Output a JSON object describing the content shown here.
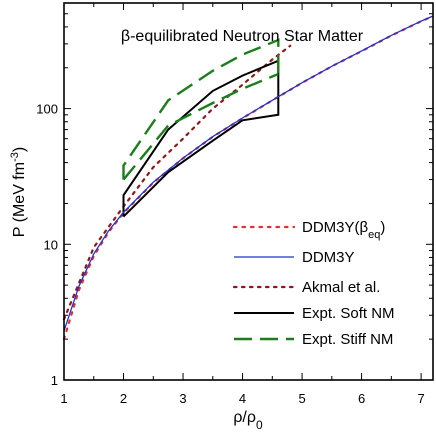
{
  "chart_data": {
    "type": "line",
    "title": "β-equilibrated Neutron Star Matter",
    "xlabel_base": "ρ/ρ",
    "xlabel_sub": "0",
    "ylabel_pre": "P (MeV fm",
    "ylabel_sup": "-3",
    "ylabel_post": ")",
    "xlim": [
      1,
      7.2
    ],
    "ylim": [
      1,
      600
    ],
    "y_scale": "log",
    "x_ticks": [
      1,
      2,
      3,
      4,
      5,
      6,
      7
    ],
    "y_ticks": [
      1,
      10,
      100
    ],
    "legend_position": "bottom-right",
    "series": [
      {
        "name_base": "DDM3Y(β",
        "name_sub": "eq",
        "name_post": ")",
        "color": "#e03030",
        "style": "dotted-red",
        "x": [
          1.0,
          1.25,
          1.5,
          1.75,
          2.0,
          2.5,
          3.0,
          3.5,
          4.0,
          4.5,
          5.0,
          5.5,
          6.0,
          6.5,
          7.0,
          7.2
        ],
        "y": [
          2.0,
          4.6,
          8.2,
          12.3,
          17.0,
          28.5,
          43.0,
          62.0,
          85.0,
          115.0,
          155.0,
          205.0,
          265.0,
          345.0,
          440.0,
          480.0
        ]
      },
      {
        "name": "DDM3Y",
        "color": "#2233cc",
        "style": "solid-blue",
        "x": [
          1.0,
          1.25,
          1.5,
          1.75,
          2.0,
          2.5,
          3.0,
          3.5,
          4.0,
          4.5,
          5.0,
          5.5,
          6.0,
          6.5,
          7.0,
          7.2
        ],
        "y": [
          2.3,
          4.9,
          8.5,
          12.6,
          17.2,
          28.7,
          43.2,
          62.2,
          85.2,
          115.2,
          155.2,
          205.0,
          266.0,
          346.0,
          441.0,
          481.0
        ]
      },
      {
        "name": "Akmal et al.",
        "color": "#8b1a1a",
        "style": "dotted-darkred",
        "x": [
          1.0,
          1.5,
          2.0,
          2.5,
          3.0,
          3.5,
          4.0,
          4.5,
          4.8
        ],
        "y": [
          2.8,
          9.5,
          19.0,
          37.0,
          60.0,
          100.0,
          150.0,
          230.0,
          290.0
        ]
      },
      {
        "name": "Expt. Soft NM",
        "color": "#000000",
        "style": "solid-black",
        "upper": {
          "x": [
            2.0,
            2.0,
            2.75,
            3.5,
            4.0,
            4.6,
            4.6
          ],
          "y": [
            16.0,
            23.0,
            70.0,
            135.0,
            175.0,
            225.0,
            190.0
          ]
        },
        "lower": {
          "x": [
            2.0,
            2.75,
            3.5,
            4.0,
            4.6,
            4.6
          ],
          "y": [
            16.0,
            34.0,
            58.0,
            82.0,
            90.0,
            190.0
          ]
        }
      },
      {
        "name": "Expt. Stiff NM",
        "color": "#1a7f1a",
        "style": "dashed-green",
        "upper": {
          "x": [
            2.0,
            2.0,
            2.75,
            3.5,
            4.0,
            4.6,
            4.6
          ],
          "y": [
            30.0,
            38.0,
            115.0,
            190.0,
            250.0,
            320.0,
            180.0
          ]
        },
        "lower": {
          "x": [
            2.0,
            2.75,
            3.5,
            4.0,
            4.6
          ],
          "y": [
            30.0,
            75.0,
            110.0,
            140.0,
            180.0
          ]
        }
      }
    ]
  }
}
